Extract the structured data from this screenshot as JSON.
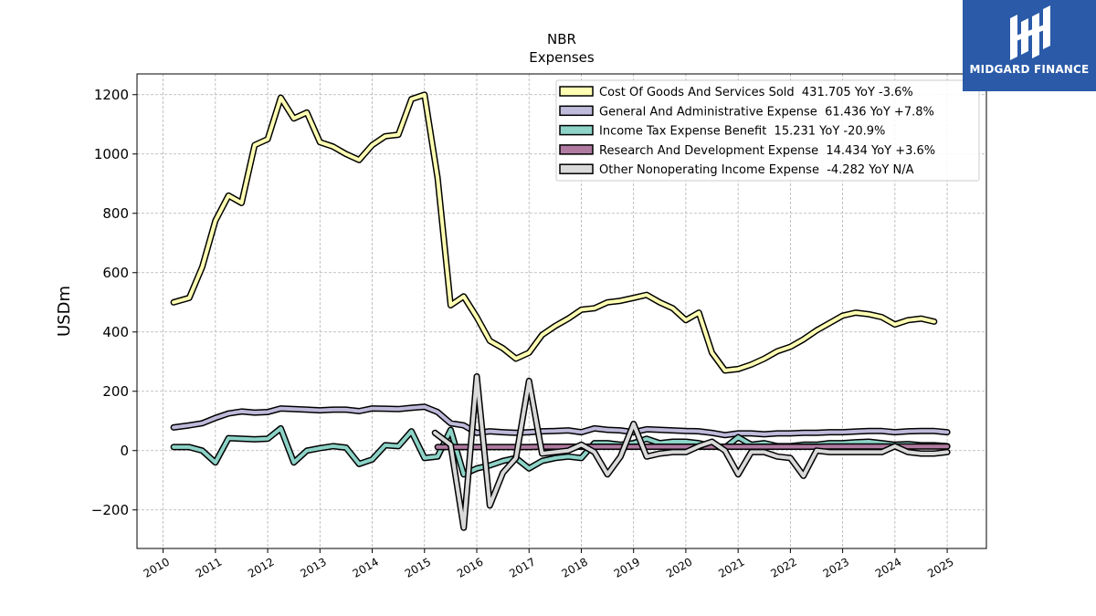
{
  "chart_data": {
    "type": "line",
    "title": "NBR",
    "subtitle": "Expenses",
    "xlabel": "",
    "ylabel": "USDm",
    "xlim": [
      2009.5,
      2025.75
    ],
    "ylim": [
      -330,
      1270
    ],
    "x_ticks": [
      "2010",
      "2011",
      "2012",
      "2013",
      "2014",
      "2015",
      "2016",
      "2017",
      "2018",
      "2019",
      "2020",
      "2021",
      "2022",
      "2023",
      "2024",
      "2025"
    ],
    "y_ticks": [
      -200,
      0,
      200,
      400,
      600,
      800,
      1000,
      1200
    ],
    "y_tick_labels": [
      "−200",
      "0",
      "200",
      "400",
      "600",
      "800",
      "1000",
      "1200"
    ],
    "grid": true,
    "legend_position": "top-right",
    "series": [
      {
        "name": "Cost Of Goods And Services Sold  431.705 YoY -3.6%",
        "color": "#ffffb3",
        "x": [
          2010.2,
          2010.5,
          2010.75,
          2011.0,
          2011.25,
          2011.5,
          2011.75,
          2012.0,
          2012.25,
          2012.5,
          2012.75,
          2013.0,
          2013.25,
          2013.5,
          2013.75,
          2014.0,
          2014.25,
          2014.5,
          2014.75,
          2015.0,
          2015.25,
          2015.5,
          2015.75,
          2016.0,
          2016.25,
          2016.5,
          2016.75,
          2017.0,
          2017.25,
          2017.5,
          2017.75,
          2018.0,
          2018.25,
          2018.5,
          2018.75,
          2019.0,
          2019.25,
          2019.5,
          2019.75,
          2020.0,
          2020.25,
          2020.5,
          2020.75,
          2021.0,
          2021.25,
          2021.5,
          2021.75,
          2022.0,
          2022.25,
          2022.5,
          2022.75,
          2023.0,
          2023.25,
          2023.5,
          2023.75,
          2024.0,
          2024.25,
          2024.5,
          2024.75
        ],
        "values": [
          500,
          515,
          620,
          775,
          860,
          835,
          1030,
          1050,
          1190,
          1120,
          1140,
          1040,
          1025,
          1000,
          980,
          1030,
          1060,
          1065,
          1185,
          1200,
          920,
          490,
          520,
          450,
          370,
          345,
          310,
          330,
          390,
          420,
          445,
          475,
          480,
          500,
          505,
          515,
          525,
          500,
          480,
          440,
          465,
          330,
          270,
          275,
          290,
          310,
          335,
          350,
          375,
          405,
          430,
          455,
          465,
          460,
          450,
          425,
          440,
          445,
          435
        ]
      },
      {
        "name": "General And Administrative Expense  61.436 YoY +7.8%",
        "color": "#bebada",
        "x": [
          2010.2,
          2010.5,
          2010.75,
          2011.0,
          2011.25,
          2011.5,
          2011.75,
          2012.0,
          2012.25,
          2012.5,
          2012.75,
          2013.0,
          2013.25,
          2013.5,
          2013.75,
          2014.0,
          2014.25,
          2014.5,
          2014.75,
          2015.0,
          2015.25,
          2015.5,
          2015.75,
          2016.0,
          2016.25,
          2016.5,
          2016.75,
          2017.0,
          2017.25,
          2017.5,
          2017.75,
          2018.0,
          2018.25,
          2018.5,
          2018.75,
          2019.0,
          2019.25,
          2019.5,
          2019.75,
          2020.0,
          2020.25,
          2020.5,
          2020.75,
          2021.0,
          2021.25,
          2021.5,
          2021.75,
          2022.0,
          2022.25,
          2022.5,
          2022.75,
          2023.0,
          2023.25,
          2023.5,
          2023.75,
          2024.0,
          2024.25,
          2024.5,
          2024.75,
          2025.0
        ],
        "values": [
          78,
          85,
          92,
          110,
          125,
          132,
          128,
          130,
          142,
          140,
          138,
          136,
          138,
          138,
          133,
          142,
          141,
          140,
          144,
          148,
          130,
          92,
          85,
          60,
          65,
          62,
          60,
          62,
          65,
          66,
          68,
          62,
          75,
          70,
          68,
          62,
          72,
          70,
          68,
          66,
          65,
          60,
          52,
          58,
          58,
          55,
          58,
          58,
          60,
          60,
          62,
          62,
          64,
          66,
          66,
          62,
          65,
          66,
          66,
          62
        ]
      },
      {
        "name": "Income Tax Expense Benefit  15.231 YoY -20.9%",
        "color": "#8dd3c7",
        "x": [
          2010.2,
          2010.5,
          2010.75,
          2011.0,
          2011.25,
          2011.5,
          2011.75,
          2012.0,
          2012.25,
          2012.5,
          2012.75,
          2013.0,
          2013.25,
          2013.5,
          2013.75,
          2014.0,
          2014.25,
          2014.5,
          2014.75,
          2015.0,
          2015.25,
          2015.5,
          2015.75,
          2016.0,
          2016.25,
          2016.5,
          2016.75,
          2017.0,
          2017.25,
          2017.5,
          2017.75,
          2018.0,
          2018.25,
          2018.5,
          2018.75,
          2019.0,
          2019.25,
          2019.5,
          2019.75,
          2020.0,
          2020.25,
          2020.5,
          2020.75,
          2021.0,
          2021.25,
          2021.5,
          2021.75,
          2022.0,
          2022.25,
          2022.5,
          2022.75,
          2023.0,
          2023.25,
          2023.5,
          2023.75,
          2024.0,
          2024.25,
          2024.5,
          2024.75,
          2025.0
        ],
        "values": [
          12,
          12,
          0,
          -40,
          42,
          40,
          38,
          40,
          75,
          -40,
          0,
          8,
          15,
          10,
          -45,
          -30,
          18,
          15,
          65,
          -25,
          -20,
          70,
          -80,
          -60,
          -50,
          -35,
          -25,
          -60,
          -35,
          -25,
          -20,
          -25,
          25,
          25,
          20,
          25,
          40,
          25,
          30,
          30,
          25,
          15,
          10,
          45,
          20,
          25,
          15,
          15,
          20,
          20,
          25,
          25,
          28,
          30,
          25,
          20,
          22,
          18,
          18,
          15
        ]
      },
      {
        "name": "Research And Development Expense  14.434 YoY +3.6%",
        "color": "#b07aa1",
        "x": [
          2015.25,
          2015.5,
          2015.75,
          2016.0,
          2016.25,
          2016.5,
          2016.75,
          2017.0,
          2017.25,
          2017.5,
          2017.75,
          2018.0,
          2018.25,
          2018.5,
          2018.75,
          2019.0,
          2019.25,
          2019.5,
          2019.75,
          2020.0,
          2020.25,
          2020.5,
          2020.75,
          2021.0,
          2021.25,
          2021.5,
          2021.75,
          2022.0,
          2022.25,
          2022.5,
          2022.75,
          2023.0,
          2023.25,
          2023.5,
          2023.75,
          2024.0,
          2024.25,
          2024.5,
          2024.75,
          2025.0
        ],
        "values": [
          12,
          12,
          12,
          12,
          12,
          12,
          12,
          12,
          13,
          13,
          13,
          13,
          13,
          13,
          13,
          13,
          13,
          13,
          13,
          13,
          13,
          13,
          13,
          13,
          13,
          13,
          13,
          13,
          13,
          13,
          14,
          14,
          14,
          14,
          14,
          14,
          14,
          14,
          14,
          14
        ]
      },
      {
        "name": "Other Nonoperating Income Expense  -4.282 YoY N/A",
        "color": "#d9d9d9",
        "x": [
          2015.2,
          2015.5,
          2015.75,
          2016.0,
          2016.25,
          2016.5,
          2016.75,
          2017.0,
          2017.25,
          2017.5,
          2017.75,
          2018.0,
          2018.25,
          2018.5,
          2018.75,
          2019.0,
          2019.25,
          2019.5,
          2019.75,
          2020.0,
          2020.25,
          2020.5,
          2020.75,
          2021.0,
          2021.25,
          2021.5,
          2021.75,
          2022.0,
          2022.25,
          2022.5,
          2022.75,
          2023.0,
          2023.25,
          2023.5,
          2023.75,
          2024.0,
          2024.25,
          2024.5,
          2024.75,
          2025.0
        ],
        "values": [
          60,
          20,
          -260,
          250,
          -185,
          -75,
          -25,
          235,
          -10,
          -5,
          0,
          20,
          -5,
          -80,
          -20,
          90,
          -20,
          -10,
          -5,
          -5,
          15,
          30,
          0,
          -80,
          -5,
          -5,
          -20,
          -25,
          -85,
          0,
          -5,
          -5,
          -5,
          -5,
          -5,
          15,
          -5,
          -10,
          -10,
          -5
        ]
      }
    ]
  },
  "logo": {
    "text": "MIDGARD FINANCE"
  }
}
